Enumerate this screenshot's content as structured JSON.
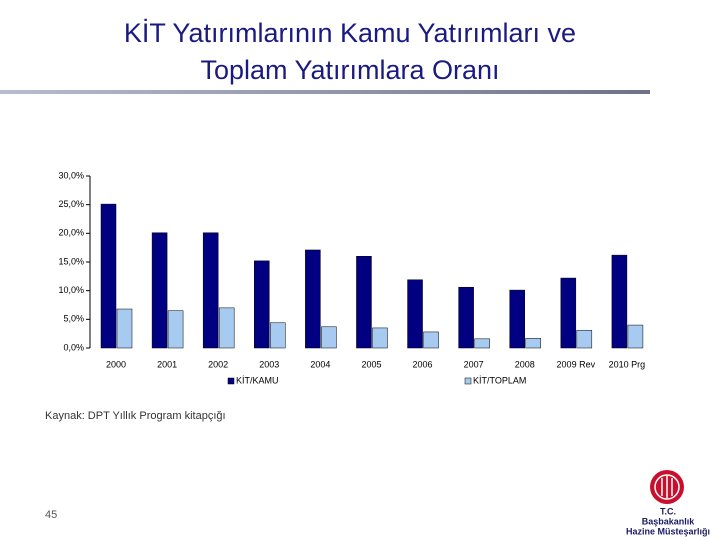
{
  "slide": {
    "title_lines": [
      "KİT Yatırımlarının Kamu Yatırımları ve",
      "Toplam Yatırımlara Oranı"
    ],
    "source": "Kaynak: DPT Yıllık Program kitapçığı",
    "page_number": 45,
    "logo_lines": [
      "T.C.",
      "Başbakanlık",
      "Hazine Müsteşarlığı"
    ]
  },
  "chart_data": {
    "type": "bar",
    "categories": [
      "2000",
      "2001",
      "2002",
      "2003",
      "2004",
      "2005",
      "2006",
      "2007",
      "2008",
      "2009 Rev",
      "2010 Prg"
    ],
    "series": [
      {
        "name": "KİT/KAMU",
        "color": "#000080",
        "values": [
          25.1,
          20.1,
          20.1,
          15.2,
          17.1,
          16.0,
          11.9,
          10.6,
          10.1,
          12.2,
          16.2
        ]
      },
      {
        "name": "KİT/TOPLAM",
        "color": "#a6caf0",
        "values": [
          6.8,
          6.5,
          7.0,
          4.4,
          3.7,
          3.5,
          2.8,
          1.6,
          1.7,
          3.1,
          4.0
        ]
      }
    ],
    "ylim": [
      0,
      30
    ],
    "yticks": [
      {
        "value": 0,
        "label": "0,0%"
      },
      {
        "value": 5,
        "label": "5,0%"
      },
      {
        "value": 10,
        "label": "10,0%"
      },
      {
        "value": 15,
        "label": "15,0%"
      },
      {
        "value": 20,
        "label": "20,0%"
      },
      {
        "value": 25,
        "label": "25,0%"
      },
      {
        "value": 30,
        "label": "30,0%"
      }
    ],
    "legend": "bottom"
  }
}
